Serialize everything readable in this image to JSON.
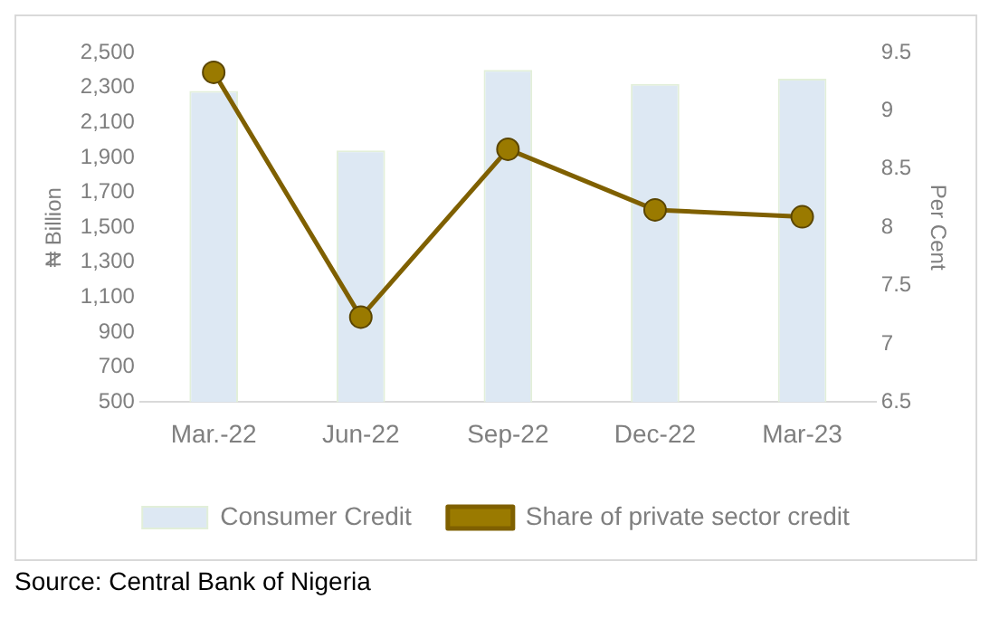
{
  "chart_data": {
    "type": "bar",
    "categories": [
      "Mar.-22",
      "Jun-22",
      "Sep-22",
      "Dec-22",
      "Mar-23"
    ],
    "series": [
      {
        "name": "Consumer Credit",
        "color": "#dde8f3",
        "values": [
          2280,
          1940,
          2400,
          2320,
          2350
        ]
      },
      {
        "name": "Share of private sector credit",
        "type": "line",
        "axis": "y2",
        "color": "#7f6000",
        "values": [
          9.33,
          7.23,
          8.67,
          8.15,
          8.09
        ]
      }
    ],
    "ylabel": "₦ Billion",
    "y2label": "Per Cent",
    "ylim": [
      500,
      2500
    ],
    "yticks": [
      500,
      700,
      900,
      {
        "value": 1100,
        "label": "1,100"
      },
      {
        "value": 1300,
        "label": "1,300"
      },
      {
        "value": 1500,
        "label": "1,500"
      },
      {
        "value": 1700,
        "label": "1,700"
      },
      {
        "value": 1900,
        "label": "1,900"
      },
      {
        "value": 2100,
        "label": "2,100"
      },
      {
        "value": 2300,
        "label": "2,300"
      },
      {
        "value": 2500,
        "label": "2,500"
      }
    ],
    "y2lim": [
      6.5,
      9.5
    ],
    "y2ticks": [
      6.5,
      7,
      7.5,
      8,
      8.5,
      9,
      9.5
    ],
    "grid": false,
    "legend": "bottom",
    "marker": "circle",
    "line_style": "solid",
    "annotations": [
      "Source: Central Bank of Nigeria"
    ]
  }
}
